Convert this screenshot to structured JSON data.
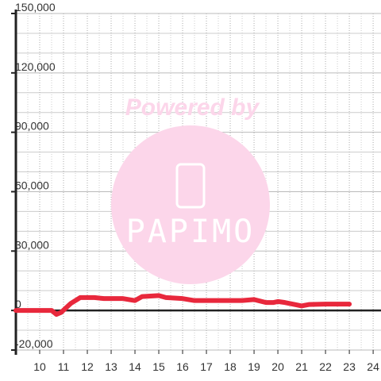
{
  "chart_data": {
    "type": "line",
    "watermark": {
      "line1": "Powered by",
      "line2": "PAPIMO"
    },
    "x": [
      9,
      10,
      10.5,
      10.7,
      10.9,
      11.3,
      11.7,
      12.3,
      12.7,
      13.5,
      14,
      14.3,
      15,
      15.3,
      16,
      16.5,
      17,
      18.5,
      19,
      19.5,
      19.8,
      20,
      20.3,
      20.8,
      21,
      21.3,
      22,
      23
    ],
    "series": [
      {
        "color": "#e8283c",
        "values": [
          0,
          0,
          0,
          -2000,
          -1000,
          3500,
          6500,
          6500,
          6000,
          6000,
          5000,
          7000,
          7500,
          6500,
          6000,
          5000,
          5000,
          5000,
          5500,
          4000,
          4000,
          4500,
          4000,
          2800,
          2300,
          3000,
          3200,
          3200
        ]
      }
    ],
    "xlim": [
      9,
      24.33
    ],
    "ylim": [
      -20000,
      150000
    ],
    "xticks": [
      10,
      11,
      12,
      13,
      14,
      15,
      16,
      17,
      18,
      19,
      20,
      21,
      22,
      23,
      24
    ],
    "yticks": [
      {
        "value": -20000,
        "label": "-20,000"
      },
      0,
      {
        "value": 30000,
        "label": "30,000"
      },
      {
        "value": 60000,
        "label": "60,000"
      },
      {
        "value": 90000,
        "label": "90,000"
      },
      {
        "value": 120000,
        "label": "120,000"
      },
      {
        "value": 150000,
        "label": "150,000"
      }
    ],
    "y_minor_gridlines": [
      -10000,
      10000,
      20000,
      40000,
      50000,
      70000,
      80000,
      100000,
      110000,
      130000,
      140000
    ],
    "x_minor_gridlines": [
      9.5,
      10.5,
      11.5,
      12.5,
      13.5,
      14.5,
      15.5,
      16.5,
      17.5,
      18.5,
      19.5,
      20.5,
      21.5,
      22.5,
      23.5
    ],
    "grid": true
  }
}
